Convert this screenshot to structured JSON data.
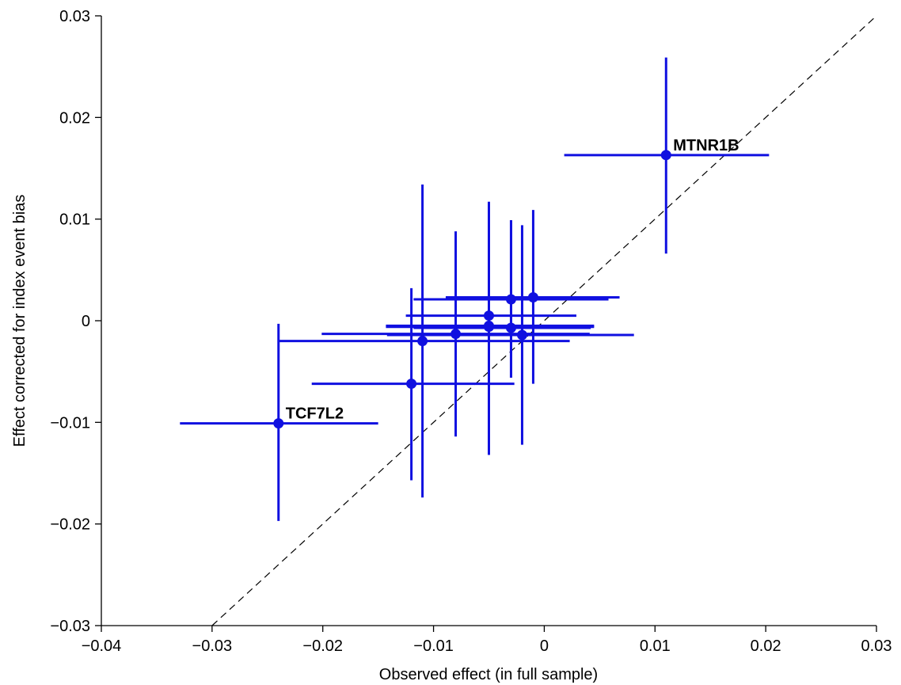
{
  "chart_data": {
    "type": "scatter",
    "title": "",
    "xlabel": "Observed effect (in full sample)",
    "ylabel": "Effect corrected for index event bias",
    "xlim": [
      -0.04,
      0.03
    ],
    "ylim": [
      -0.03,
      0.03
    ],
    "x_ticks": [
      -0.04,
      -0.03,
      -0.02,
      -0.01,
      0,
      0.01,
      0.02,
      0.03
    ],
    "y_ticks": [
      -0.03,
      -0.02,
      -0.01,
      0,
      0.01,
      0.02,
      0.03
    ],
    "x_tick_labels": [
      "−0.04",
      "−0.03",
      "−0.02",
      "−0.01",
      "0",
      "0.01",
      "0.02",
      "0.03"
    ],
    "y_tick_labels": [
      "−0.03",
      "−0.02",
      "−0.01",
      "0",
      "0.01",
      "0.02",
      "0.03"
    ],
    "reference_line": {
      "style": "dashed",
      "from": [
        -0.03,
        -0.03
      ],
      "to": [
        0.03,
        0.03
      ]
    },
    "marker_color": "#1010e0",
    "points": [
      {
        "x": 0.011,
        "y": 0.0163,
        "x_low": 0.0018,
        "x_high": 0.0203,
        "y_low": 0.0066,
        "y_high": 0.0259,
        "label": "MTNR1B"
      },
      {
        "x": -0.024,
        "y": -0.0101,
        "x_low": -0.0329,
        "x_high": -0.015,
        "y_low": -0.0197,
        "y_high": -0.0003,
        "label": "TCF7L2"
      },
      {
        "x": -0.012,
        "y": -0.0062,
        "x_low": -0.021,
        "x_high": -0.0027,
        "y_low": -0.0157,
        "y_high": 0.0032
      },
      {
        "x": -0.011,
        "y": -0.002,
        "x_low": -0.024,
        "x_high": 0.0023,
        "y_low": -0.0174,
        "y_high": 0.0134
      },
      {
        "x": -0.008,
        "y": -0.0013,
        "x_low": -0.0201,
        "x_high": 0.0041,
        "y_low": -0.0114,
        "y_high": 0.0088
      },
      {
        "x": -0.005,
        "y": 0.0005,
        "x_low": -0.0125,
        "x_high": 0.0029,
        "y_low": -0.0132,
        "y_high": 0.0117
      },
      {
        "x": -0.005,
        "y": -0.0006,
        "x_low": -0.0143,
        "x_high": 0.0045,
        "y_low": -0.0132,
        "y_high": 0.0117
      },
      {
        "x": -0.003,
        "y": 0.0021,
        "x_low": -0.0118,
        "x_high": 0.0058,
        "y_low": -0.0056,
        "y_high": 0.0099
      },
      {
        "x": -0.002,
        "y": -0.0014,
        "x_low": -0.0142,
        "x_high": 0.0081,
        "y_low": -0.0122,
        "y_high": 0.0094
      },
      {
        "x": -0.001,
        "y": 0.0023,
        "x_low": -0.0089,
        "x_high": 0.0068,
        "y_low": -0.0062,
        "y_high": 0.0109
      },
      {
        "x": -0.005,
        "y": -0.0005,
        "x_low": -0.0143,
        "x_high": 0.0045,
        "y_low": -0.0132,
        "y_high": 0.0117
      },
      {
        "x": -0.003,
        "y": -0.0007,
        "x_low": -0.0118,
        "x_high": 0.0042,
        "y_low": -0.0056,
        "y_high": 0.0099
      }
    ]
  }
}
